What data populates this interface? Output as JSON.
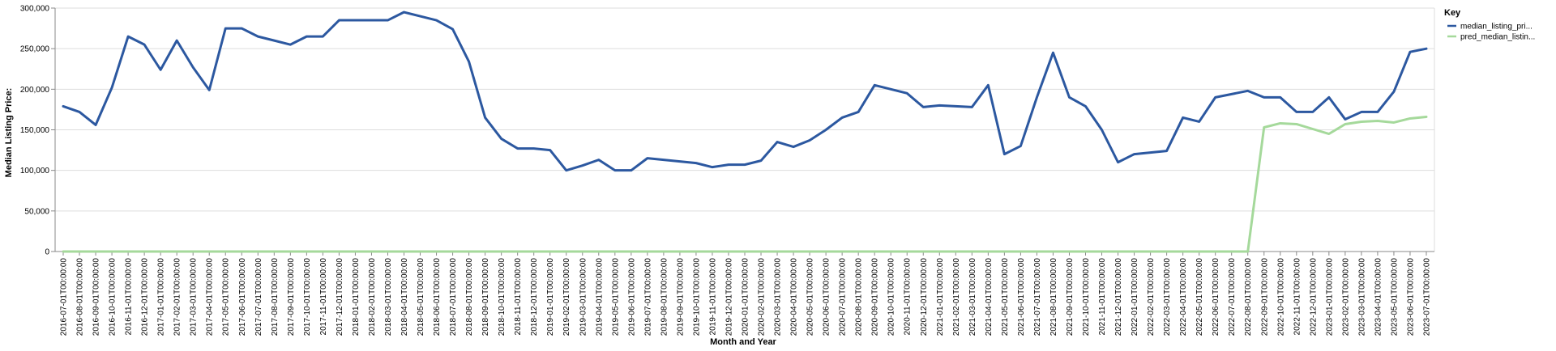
{
  "chart_data": {
    "type": "line",
    "xlabel": "Month and Year",
    "ylabel": "Median Listing Price:",
    "ylim": [
      0,
      300000
    ],
    "yticks": [
      0,
      50000,
      100000,
      150000,
      200000,
      250000,
      300000
    ],
    "ytick_labels": [
      "0",
      "50,000",
      "100,000",
      "150,000",
      "200,000",
      "250,000",
      "300,000"
    ],
    "grid": "horizontal",
    "legend": {
      "title": "Key",
      "placement": "top-right"
    },
    "x": [
      "2016-07-01T00:00:00",
      "2016-08-01T00:00:00",
      "2016-09-01T00:00:00",
      "2016-10-01T00:00:00",
      "2016-11-01T00:00:00",
      "2016-12-01T00:00:00",
      "2017-01-01T00:00:00",
      "2017-02-01T00:00:00",
      "2017-03-01T00:00:00",
      "2017-04-01T00:00:00",
      "2017-05-01T00:00:00",
      "2017-06-01T00:00:00",
      "2017-07-01T00:00:00",
      "2017-08-01T00:00:00",
      "2017-09-01T00:00:00",
      "2017-10-01T00:00:00",
      "2017-11-01T00:00:00",
      "2017-12-01T00:00:00",
      "2018-01-01T00:00:00",
      "2018-02-01T00:00:00",
      "2018-03-01T00:00:00",
      "2018-04-01T00:00:00",
      "2018-05-01T00:00:00",
      "2018-06-01T00:00:00",
      "2018-07-01T00:00:00",
      "2018-08-01T00:00:00",
      "2018-09-01T00:00:00",
      "2018-10-01T00:00:00",
      "2018-11-01T00:00:00",
      "2018-12-01T00:00:00",
      "2019-01-01T00:00:00",
      "2019-02-01T00:00:00",
      "2019-03-01T00:00:00",
      "2019-04-01T00:00:00",
      "2019-05-01T00:00:00",
      "2019-06-01T00:00:00",
      "2019-07-01T00:00:00",
      "2019-08-01T00:00:00",
      "2019-09-01T00:00:00",
      "2019-10-01T00:00:00",
      "2019-11-01T00:00:00",
      "2019-12-01T00:00:00",
      "2020-01-01T00:00:00",
      "2020-02-01T00:00:00",
      "2020-03-01T00:00:00",
      "2020-04-01T00:00:00",
      "2020-05-01T00:00:00",
      "2020-06-01T00:00:00",
      "2020-07-01T00:00:00",
      "2020-08-01T00:00:00",
      "2020-09-01T00:00:00",
      "2020-10-01T00:00:00",
      "2020-11-01T00:00:00",
      "2020-12-01T00:00:00",
      "2021-01-01T00:00:00",
      "2021-02-01T00:00:00",
      "2021-03-01T00:00:00",
      "2021-04-01T00:00:00",
      "2021-05-01T00:00:00",
      "2021-06-01T00:00:00",
      "2021-07-01T00:00:00",
      "2021-08-01T00:00:00",
      "2021-09-01T00:00:00",
      "2021-10-01T00:00:00",
      "2021-11-01T00:00:00",
      "2021-12-01T00:00:00",
      "2022-01-01T00:00:00",
      "2022-02-01T00:00:00",
      "2022-03-01T00:00:00",
      "2022-04-01T00:00:00",
      "2022-05-01T00:00:00",
      "2022-06-01T00:00:00",
      "2022-07-01T00:00:00",
      "2022-08-01T00:00:00",
      "2022-09-01T00:00:00",
      "2022-10-01T00:00:00",
      "2022-11-01T00:00:00",
      "2022-12-01T00:00:00",
      "2023-01-01T00:00:00",
      "2023-02-01T00:00:00",
      "2023-03-01T00:00:00",
      "2023-04-01T00:00:00",
      "2023-05-01T00:00:00",
      "2023-06-01T00:00:00",
      "2023-07-01T00:00:00"
    ],
    "series": [
      {
        "name": "median_listing_pri...",
        "color": "#2c58a0",
        "values": [
          179000,
          172000,
          156000,
          202000,
          265000,
          255000,
          224000,
          260000,
          227000,
          199000,
          275000,
          275000,
          265000,
          260000,
          255000,
          265000,
          265000,
          285000,
          285000,
          285000,
          285000,
          295000,
          290000,
          285000,
          274000,
          234000,
          165000,
          139000,
          127000,
          127000,
          125000,
          100000,
          106000,
          113000,
          100000,
          100000,
          115000,
          113000,
          111000,
          109000,
          104000,
          107000,
          107000,
          112000,
          135000,
          129000,
          137000,
          150000,
          165000,
          172000,
          205000,
          200000,
          195000,
          178000,
          180000,
          179000,
          178000,
          205000,
          120000,
          130000,
          190000,
          245000,
          190000,
          179000,
          150000,
          110000,
          120000,
          122000,
          124000,
          165000,
          160000,
          190000,
          194000,
          198000,
          190000,
          190000,
          172000,
          172000,
          190000,
          163000,
          172000,
          172000,
          197000,
          246000,
          250000
        ]
      },
      {
        "name": "pred_median_listin...",
        "color": "#a5d99b",
        "values": [
          0,
          0,
          0,
          0,
          0,
          0,
          0,
          0,
          0,
          0,
          0,
          0,
          0,
          0,
          0,
          0,
          0,
          0,
          0,
          0,
          0,
          0,
          0,
          0,
          0,
          0,
          0,
          0,
          0,
          0,
          0,
          0,
          0,
          0,
          0,
          0,
          0,
          0,
          0,
          0,
          0,
          0,
          0,
          0,
          0,
          0,
          0,
          0,
          0,
          0,
          0,
          0,
          0,
          0,
          0,
          0,
          0,
          0,
          0,
          0,
          0,
          0,
          0,
          0,
          0,
          0,
          0,
          0,
          0,
          0,
          0,
          0,
          0,
          0,
          153000,
          158000,
          157000,
          151000,
          145000,
          157000,
          160000,
          161000,
          159000,
          164000,
          166000
        ]
      }
    ]
  }
}
